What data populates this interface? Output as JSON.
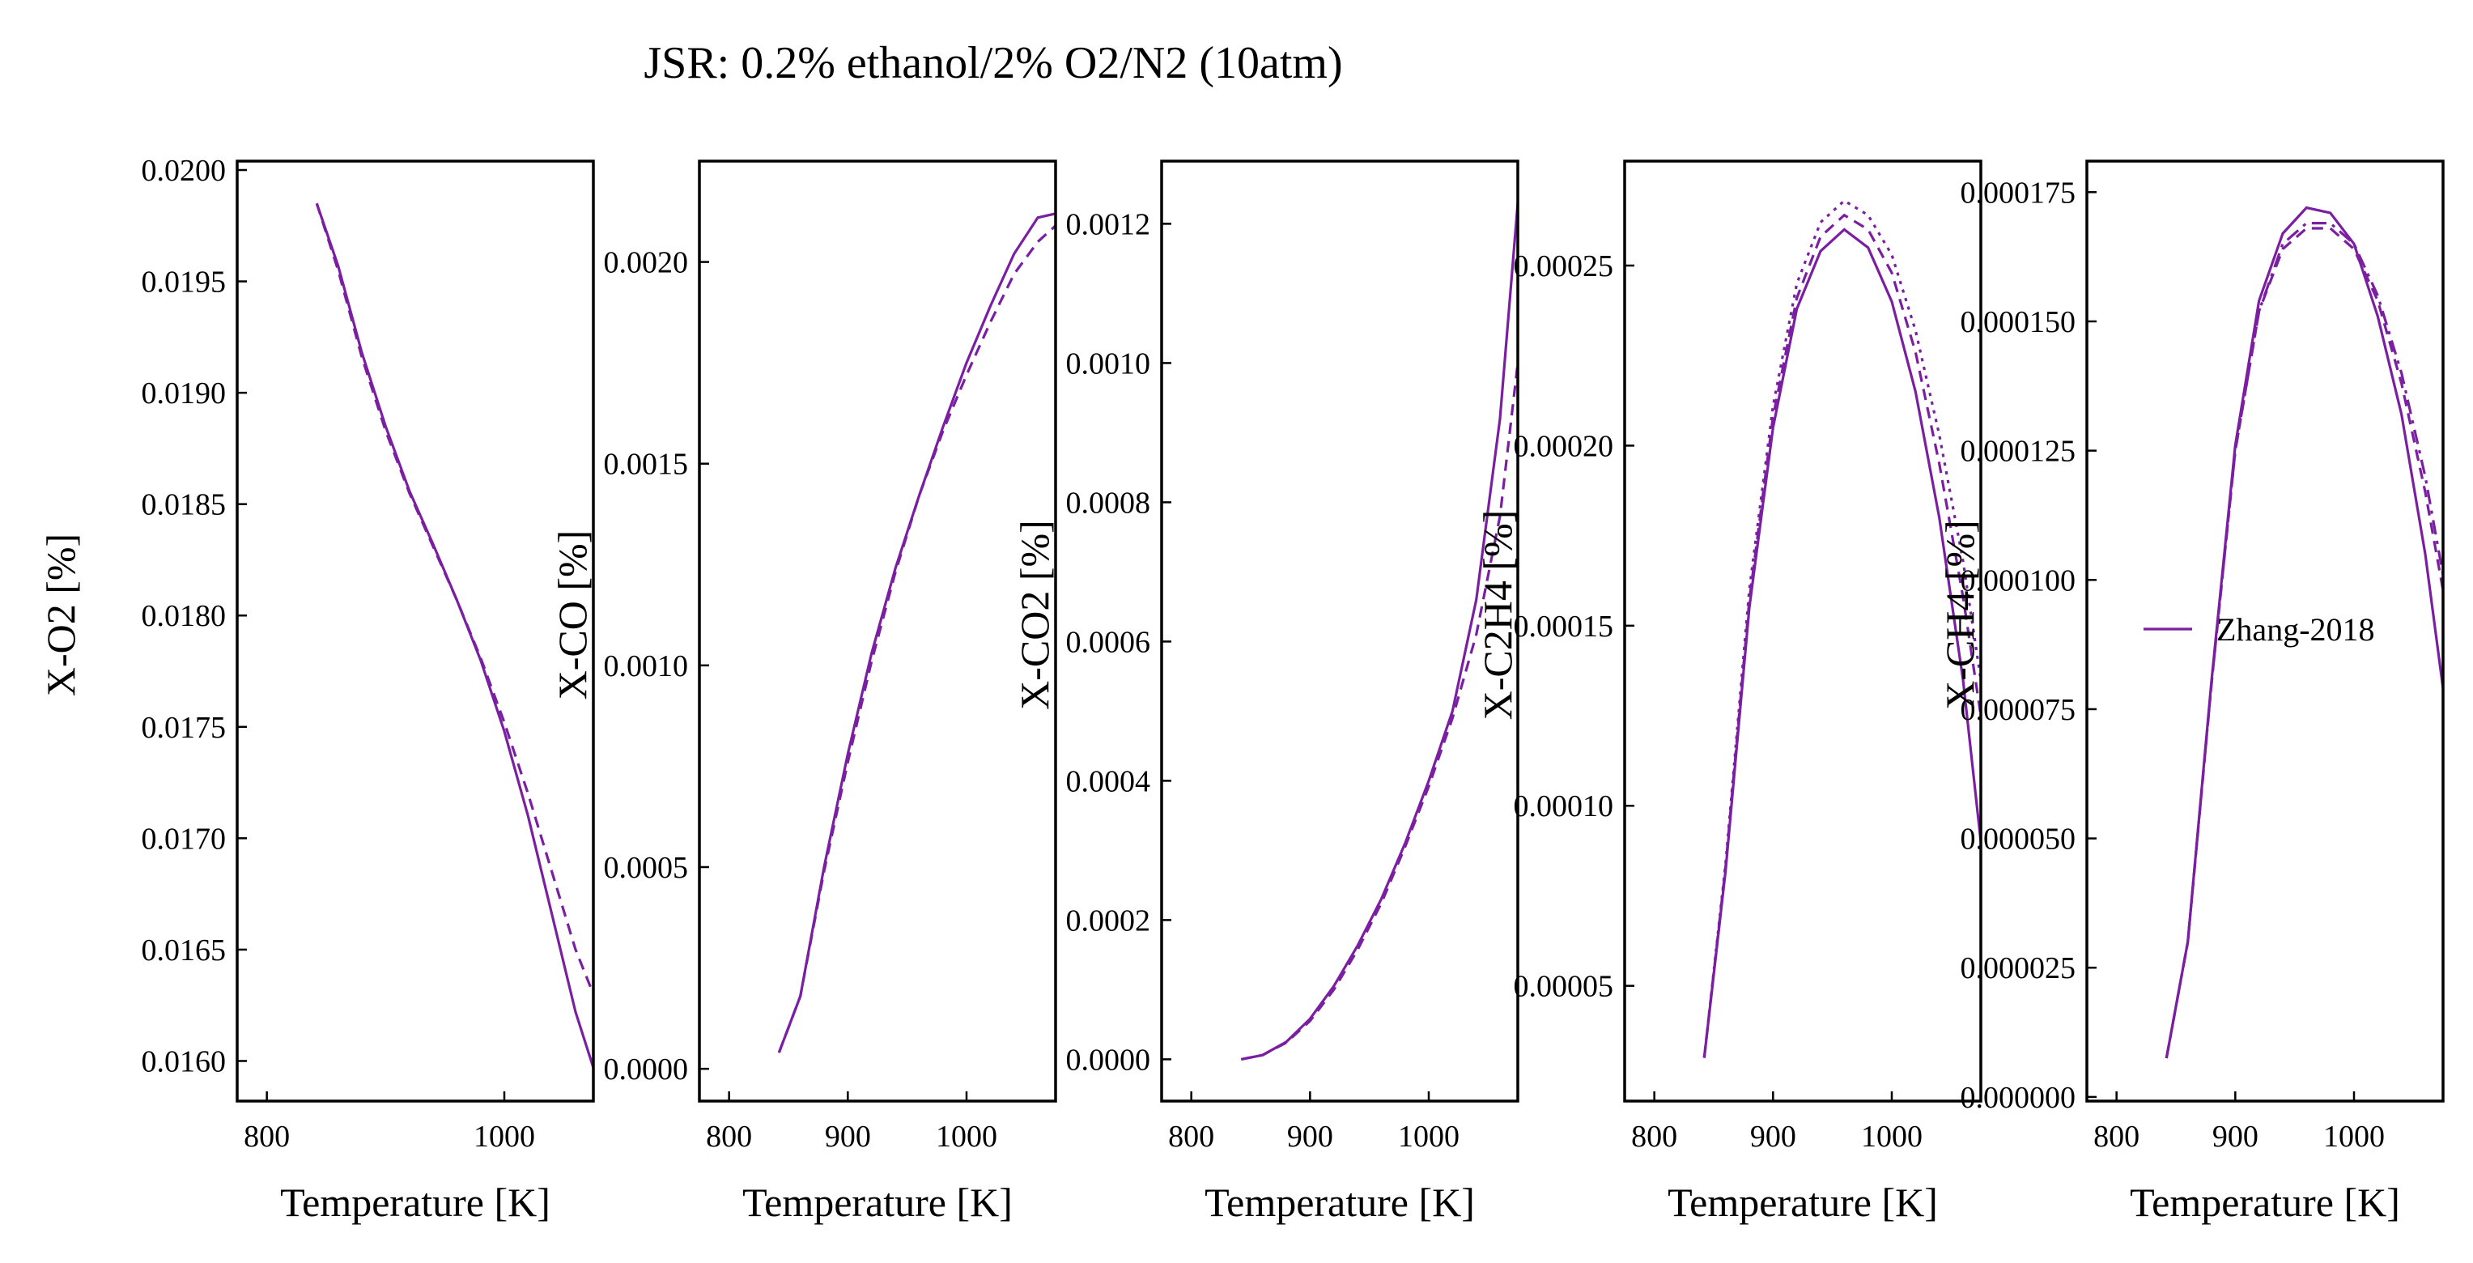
{
  "figure": {
    "title": "JSR: 0.2% ethanol/2% O2/N2 (10atm)"
  },
  "styles": {
    "series_color": "#7b1fa2",
    "axis_color": "#000000"
  },
  "chart_data": [
    {
      "type": "line",
      "xlabel": "Temperature [K]",
      "ylabel": "X-O2 [%]",
      "xlim": [
        775,
        1075
      ],
      "ylim": [
        0.01582,
        0.02004
      ],
      "xticks": [
        "800",
        "1000"
      ],
      "yticks": [
        "0.0160",
        "0.0165",
        "0.0170",
        "0.0175",
        "0.0180",
        "0.0185",
        "0.0190",
        "0.0195",
        "0.0200"
      ],
      "series": [
        {
          "style": "solid",
          "x": [
            842,
            860,
            880,
            900,
            920,
            940,
            960,
            980,
            1000,
            1020,
            1040,
            1060,
            1075
          ],
          "y": [
            0.01985,
            0.01957,
            0.01918,
            0.01885,
            0.01856,
            0.01832,
            0.01807,
            0.0178,
            0.01748,
            0.0171,
            0.01666,
            0.01622,
            0.01597
          ]
        },
        {
          "style": "dashed",
          "x": [
            842,
            860,
            880,
            900,
            920,
            940,
            960,
            980,
            1000,
            1020,
            1040,
            1060,
            1075
          ],
          "y": [
            0.01985,
            0.01955,
            0.01916,
            0.01883,
            0.01855,
            0.01831,
            0.01807,
            0.01781,
            0.01752,
            0.0172,
            0.01685,
            0.0165,
            0.0163
          ]
        }
      ]
    },
    {
      "type": "line",
      "xlabel": "Temperature [K]",
      "ylabel": "X-CO [%]",
      "xlim": [
        775,
        1075
      ],
      "ylim": [
        -8e-05,
        0.00225
      ],
      "xticks": [
        "800",
        "900",
        "1000"
      ],
      "yticks": [
        "0.0000",
        "0.0005",
        "0.0010",
        "0.0015",
        "0.0020"
      ],
      "series": [
        {
          "style": "solid",
          "x": [
            842,
            860,
            880,
            900,
            920,
            940,
            960,
            980,
            1000,
            1020,
            1040,
            1060,
            1075
          ],
          "y": [
            4e-05,
            0.00018,
            0.0005,
            0.00078,
            0.00103,
            0.00124,
            0.00142,
            0.00159,
            0.00175,
            0.00189,
            0.00202,
            0.00211,
            0.00212
          ]
        },
        {
          "style": "dashed",
          "x": [
            842,
            860,
            880,
            900,
            920,
            940,
            960,
            980,
            1000,
            1020,
            1040,
            1060,
            1075
          ],
          "y": [
            4e-05,
            0.00018,
            0.00049,
            0.00076,
            0.00101,
            0.00123,
            0.00142,
            0.00158,
            0.00172,
            0.00185,
            0.00197,
            0.00205,
            0.00209
          ]
        }
      ]
    },
    {
      "type": "line",
      "xlabel": "Temperature [K]",
      "ylabel": "X-CO2 [%]",
      "xlim": [
        775,
        1075
      ],
      "ylim": [
        -6e-05,
        0.00129
      ],
      "xticks": [
        "800",
        "900",
        "1000"
      ],
      "yticks": [
        "0.0000",
        "0.0002",
        "0.0004",
        "0.0006",
        "0.0008",
        "0.0010",
        "0.0012"
      ],
      "series": [
        {
          "style": "solid",
          "x": [
            842,
            860,
            880,
            900,
            920,
            940,
            960,
            980,
            1000,
            1020,
            1040,
            1060,
            1075
          ],
          "y": [
            0.0,
            6e-06,
            2.5e-05,
            5.8e-05,
            0.000105,
            0.000163,
            0.00023,
            0.00031,
            0.0004,
            0.0005,
            0.00066,
            0.00092,
            0.00123
          ]
        },
        {
          "style": "dashed",
          "x": [
            842,
            860,
            880,
            900,
            920,
            940,
            960,
            980,
            1000,
            1020,
            1040,
            1060,
            1075
          ],
          "y": [
            0.0,
            6e-06,
            2.4e-05,
            5.5e-05,
            0.0001,
            0.000157,
            0.000224,
            0.000305,
            0.000392,
            0.00049,
            0.00061,
            0.00078,
            0.001
          ]
        }
      ]
    },
    {
      "type": "line",
      "xlabel": "Temperature [K]",
      "ylabel": "X-C2H4 [%]",
      "xlim": [
        775,
        1075
      ],
      "ylim": [
        1.8e-05,
        0.000279
      ],
      "xticks": [
        "800",
        "900",
        "1000"
      ],
      "yticks": [
        "0.00005",
        "0.00010",
        "0.00015",
        "0.00020",
        "0.00025"
      ],
      "series": [
        {
          "style": "solid",
          "x": [
            842,
            860,
            880,
            900,
            920,
            940,
            960,
            980,
            1000,
            1020,
            1040,
            1060,
            1075
          ],
          "y": [
            3e-05,
            8.2e-05,
            0.000155,
            0.000205,
            0.000238,
            0.000254,
            0.00026,
            0.000255,
            0.00024,
            0.000215,
            0.00018,
            0.000135,
            9e-05
          ]
        },
        {
          "style": "dashed",
          "x": [
            842,
            860,
            880,
            900,
            920,
            940,
            960,
            980,
            1000,
            1020,
            1040,
            1060,
            1075
          ],
          "y": [
            3e-05,
            8.3e-05,
            0.000157,
            0.000208,
            0.000241,
            0.000258,
            0.000264,
            0.00026,
            0.000248,
            0.000226,
            0.000195,
            0.000158,
            0.000125
          ]
        },
        {
          "style": "dotted",
          "x": [
            842,
            860,
            880,
            900,
            920,
            940,
            960,
            980,
            1000,
            1020,
            1040,
            1060,
            1075
          ],
          "y": [
            3e-05,
            8.4e-05,
            0.00016,
            0.000211,
            0.000245,
            0.000262,
            0.000268,
            0.000264,
            0.000253,
            0.000232,
            0.000203,
            0.000168,
            0.000135
          ]
        }
      ]
    },
    {
      "type": "line",
      "xlabel": "Temperature [K]",
      "ylabel": "X-CH4 [%]",
      "xlim": [
        775,
        1075
      ],
      "ylim": [
        -8e-07,
        0.000181
      ],
      "xticks": [
        "800",
        "900",
        "1000"
      ],
      "yticks": [
        "0.000000",
        "0.000025",
        "0.000050",
        "0.000075",
        "0.000100",
        "0.000125",
        "0.000150",
        "0.000175"
      ],
      "legend": {
        "position": "center-right",
        "entries": [
          "Zhang-2018"
        ]
      },
      "series": [
        {
          "style": "solid",
          "label": "Zhang-2018",
          "x": [
            842,
            860,
            880,
            900,
            920,
            940,
            960,
            980,
            1000,
            1020,
            1040,
            1060,
            1075
          ],
          "y": [
            7.5e-06,
            3e-05,
            8.05e-05,
            0.000126,
            0.000154,
            0.000167,
            0.000172,
            0.000171,
            0.000165,
            0.000151,
            0.000132,
            0.000105,
            7.9e-05
          ]
        },
        {
          "style": "dashed",
          "x": [
            842,
            860,
            880,
            900,
            920,
            940,
            960,
            980,
            1000,
            1020,
            1040,
            1060,
            1075
          ],
          "y": [
            7.5e-06,
            3e-05,
            8e-05,
            0.000125,
            0.000152,
            0.000164,
            0.000168,
            0.000168,
            0.000164,
            0.000154,
            0.000138,
            0.000117,
            9.8e-05
          ]
        },
        {
          "style": "dashdot",
          "x": [
            842,
            860,
            880,
            900,
            920,
            940,
            960,
            980,
            1000,
            1020,
            1040,
            1060,
            1075
          ],
          "y": [
            7.5e-06,
            3e-05,
            8e-05,
            0.000125,
            0.000152,
            0.000165,
            0.000169,
            0.000169,
            0.000165,
            0.000155,
            0.00014,
            0.00012,
            0.000101
          ]
        }
      ]
    }
  ]
}
